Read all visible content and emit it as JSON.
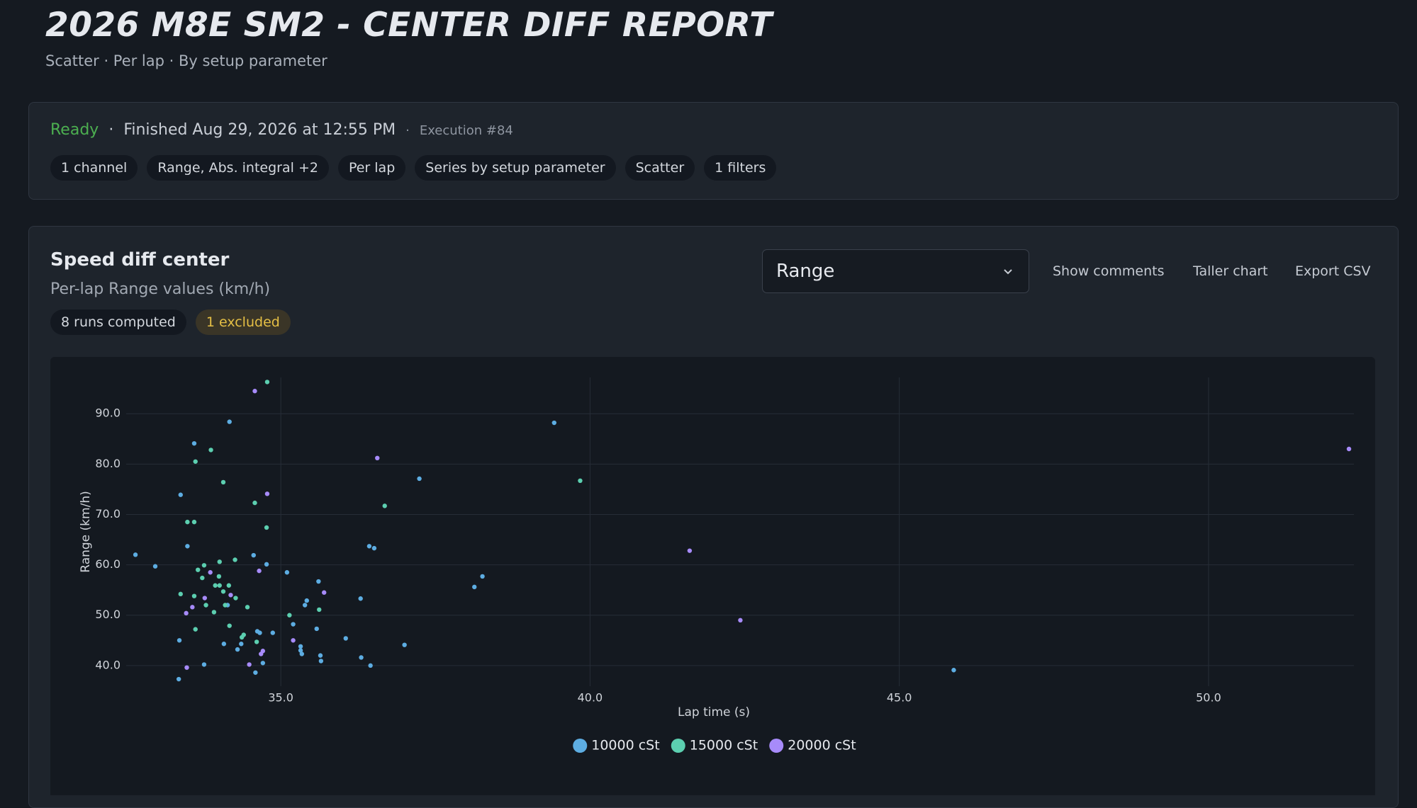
{
  "header": {
    "title": "2026 M8E SM2 - CENTER DIFF REPORT",
    "subtitle": "Scatter · Per lap · By setup parameter"
  },
  "status": {
    "state": "Ready",
    "separator": "·",
    "finished": "Finished Aug 29, 2026 at 12:55 PM",
    "execution": "Execution #84",
    "chips": [
      "1 channel",
      "Range, Abs. integral +2",
      "Per lap",
      "Series by setup parameter",
      "Scatter",
      "1 filters"
    ]
  },
  "panel": {
    "title": "Speed diff center",
    "subtitle": "Per-lap Range values (km/h)",
    "badges": [
      "8 runs computed",
      "1 excluded"
    ],
    "select": "Range",
    "actions": [
      "Show comments",
      "Taller chart",
      "Export CSV"
    ]
  },
  "chart_data": {
    "type": "scatter",
    "xlabel": "Lap time (s)",
    "ylabel": "Range (km/h)",
    "xlim": [
      32.5,
      52.35
    ],
    "ylim": [
      35.9,
      97.2
    ],
    "xticks": [
      {
        "value": 35,
        "label": "35.0"
      },
      {
        "value": 40,
        "label": "40.0"
      },
      {
        "value": 45,
        "label": "45.0"
      },
      {
        "value": 50,
        "label": "50.0"
      }
    ],
    "yticks": [
      {
        "value": 40,
        "label": "40.0"
      },
      {
        "value": 50,
        "label": "50.0"
      },
      {
        "value": 60,
        "label": "60.0"
      },
      {
        "value": 70,
        "label": "70.0"
      },
      {
        "value": 80,
        "label": "80.0"
      },
      {
        "value": 90,
        "label": "90.0"
      }
    ],
    "grid": true,
    "legend": "bottom",
    "series": [
      {
        "name": "10000 cSt",
        "color": "#5dade2",
        "x": [
          32.65,
          32.97,
          33.38,
          33.49,
          33.6,
          34.17,
          33.36,
          33.35,
          33.76,
          34.08,
          34.3,
          34.36,
          34.56,
          34.77,
          34.59,
          34.71,
          34.62,
          34.66,
          34.87,
          35.1,
          35.2,
          35.32,
          35.32,
          35.34,
          35.39,
          35.42,
          35.58,
          35.61,
          35.64,
          35.65,
          36.05,
          36.29,
          36.3,
          36.43,
          36.51,
          36.45,
          37.0,
          37.24,
          38.13,
          38.26,
          39.42,
          45.88,
          34.14
        ],
        "values": [
          62.0,
          59.7,
          73.9,
          63.7,
          84.1,
          88.4,
          45.0,
          37.3,
          40.2,
          44.3,
          43.2,
          44.3,
          61.9,
          60.1,
          38.6,
          40.5,
          46.8,
          46.5,
          46.5,
          58.5,
          48.2,
          43.8,
          43.0,
          42.3,
          52.0,
          52.9,
          47.3,
          56.7,
          42.0,
          40.9,
          45.4,
          53.3,
          41.6,
          63.7,
          63.3,
          40.0,
          44.1,
          77.1,
          55.6,
          57.7,
          88.2,
          39.1,
          52.0
        ]
      },
      {
        "name": "15000 cSt",
        "color": "#5ccfb0",
        "x": [
          34.78,
          33.87,
          33.62,
          34.07,
          33.49,
          33.6,
          34.58,
          34.77,
          36.68,
          39.84,
          33.76,
          33.66,
          34.01,
          34.26,
          33.73,
          34.0,
          33.94,
          34.01,
          34.16,
          34.07,
          34.27,
          33.38,
          33.6,
          33.79,
          34.1,
          33.92,
          34.46,
          35.62,
          35.14,
          34.17,
          33.62,
          34.4,
          34.37,
          34.61
        ],
        "values": [
          96.3,
          82.8,
          80.5,
          76.4,
          68.5,
          68.5,
          72.3,
          67.4,
          71.7,
          76.7,
          59.9,
          59.0,
          60.6,
          61.0,
          57.4,
          57.7,
          55.9,
          55.9,
          55.9,
          54.7,
          53.4,
          54.2,
          53.8,
          52.0,
          52.0,
          50.6,
          51.6,
          51.1,
          50.0,
          47.9,
          47.2,
          46.1,
          45.6,
          44.7
        ]
      },
      {
        "name": "20000 cSt",
        "color": "#a78bfa",
        "x": [
          34.58,
          36.56,
          34.78,
          41.61,
          52.27,
          42.43,
          34.65,
          33.86,
          35.7,
          33.77,
          34.19,
          33.57,
          33.47,
          35.2,
          34.71,
          34.68,
          34.49,
          33.48
        ],
        "values": [
          94.5,
          81.2,
          74.1,
          62.8,
          83.0,
          49.0,
          58.8,
          58.5,
          54.5,
          53.4,
          54.0,
          51.6,
          50.4,
          45.0,
          42.9,
          42.3,
          40.2,
          39.6
        ]
      }
    ]
  }
}
